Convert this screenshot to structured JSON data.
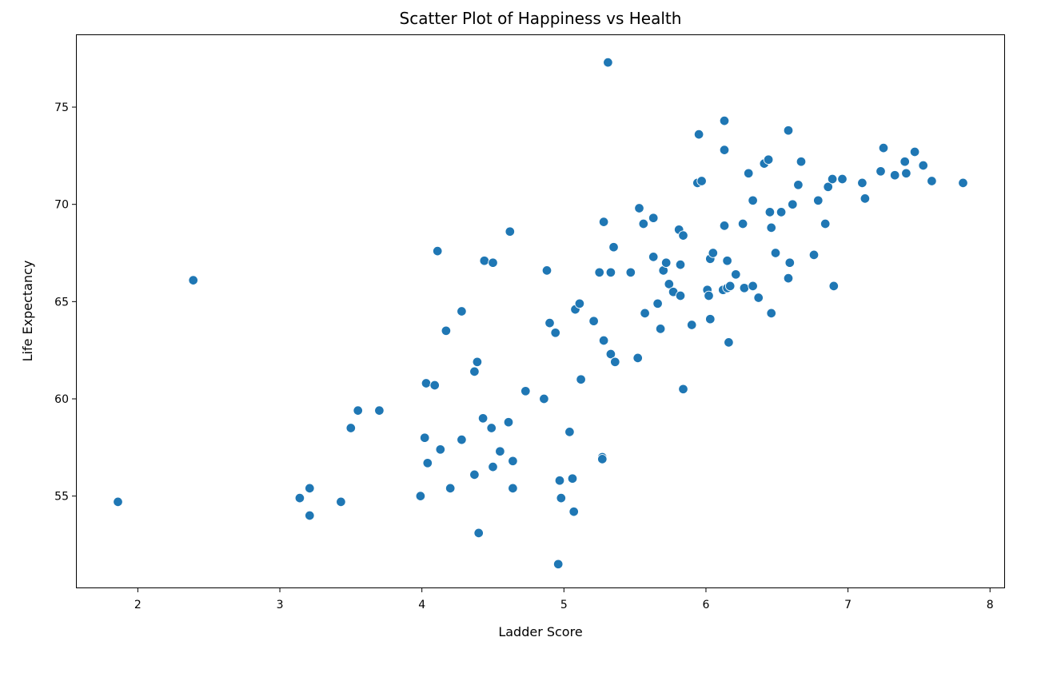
{
  "chart_data": {
    "type": "scatter",
    "title": "Scatter Plot of Happiness vs Health",
    "xlabel": "Ladder Score",
    "ylabel": "Life Expectancy",
    "xlim": [
      1.57,
      8.1
    ],
    "ylim": [
      50.3,
      78.7
    ],
    "xticks": [
      2,
      3,
      4,
      5,
      6,
      7,
      8
    ],
    "yticks": [
      55,
      60,
      65,
      70,
      75
    ],
    "grid": false,
    "legend": "none",
    "point_color": "#1f77b4",
    "points": [
      [
        1.86,
        54.7
      ],
      [
        2.39,
        66.1
      ],
      [
        3.14,
        54.9
      ],
      [
        3.21,
        55.4
      ],
      [
        3.21,
        54.0
      ],
      [
        3.43,
        54.7
      ],
      [
        3.5,
        58.5
      ],
      [
        3.55,
        59.4
      ],
      [
        3.7,
        59.4
      ],
      [
        3.99,
        55.0
      ],
      [
        4.02,
        58.0
      ],
      [
        4.03,
        60.8
      ],
      [
        4.04,
        56.7
      ],
      [
        4.09,
        60.7
      ],
      [
        4.11,
        67.6
      ],
      [
        4.13,
        57.4
      ],
      [
        4.17,
        63.5
      ],
      [
        4.2,
        55.4
      ],
      [
        4.28,
        57.9
      ],
      [
        4.28,
        64.5
      ],
      [
        4.37,
        61.4
      ],
      [
        4.37,
        56.1
      ],
      [
        4.39,
        61.9
      ],
      [
        4.4,
        53.1
      ],
      [
        4.43,
        59.0
      ],
      [
        4.44,
        67.1
      ],
      [
        4.49,
        58.5
      ],
      [
        4.5,
        67.0
      ],
      [
        4.5,
        56.5
      ],
      [
        4.55,
        57.3
      ],
      [
        4.61,
        58.8
      ],
      [
        4.62,
        68.6
      ],
      [
        4.64,
        56.8
      ],
      [
        4.64,
        55.4
      ],
      [
        4.73,
        60.4
      ],
      [
        4.86,
        60.0
      ],
      [
        4.88,
        66.6
      ],
      [
        4.9,
        63.9
      ],
      [
        4.94,
        63.4
      ],
      [
        4.96,
        51.5
      ],
      [
        4.97,
        55.8
      ],
      [
        4.98,
        54.9
      ],
      [
        5.04,
        58.3
      ],
      [
        5.06,
        55.9
      ],
      [
        5.07,
        54.2
      ],
      [
        5.08,
        64.6
      ],
      [
        5.11,
        64.9
      ],
      [
        5.12,
        61.0
      ],
      [
        5.21,
        64.0
      ],
      [
        5.25,
        66.5
      ],
      [
        5.27,
        57.0
      ],
      [
        5.27,
        56.9
      ],
      [
        5.28,
        69.1
      ],
      [
        5.28,
        63.0
      ],
      [
        5.31,
        77.3
      ],
      [
        5.33,
        62.3
      ],
      [
        5.33,
        66.5
      ],
      [
        5.35,
        67.8
      ],
      [
        5.36,
        61.9
      ],
      [
        5.47,
        66.5
      ],
      [
        5.52,
        62.1
      ],
      [
        5.53,
        69.8
      ],
      [
        5.56,
        69.0
      ],
      [
        5.57,
        64.4
      ],
      [
        5.63,
        69.3
      ],
      [
        5.63,
        67.3
      ],
      [
        5.66,
        64.9
      ],
      [
        5.68,
        63.6
      ],
      [
        5.7,
        66.6
      ],
      [
        5.72,
        67.0
      ],
      [
        5.74,
        65.9
      ],
      [
        5.77,
        65.5
      ],
      [
        5.81,
        68.7
      ],
      [
        5.82,
        66.9
      ],
      [
        5.82,
        65.3
      ],
      [
        5.84,
        68.4
      ],
      [
        5.84,
        60.5
      ],
      [
        5.9,
        63.8
      ],
      [
        5.94,
        71.1
      ],
      [
        5.95,
        73.6
      ],
      [
        5.97,
        71.2
      ],
      [
        6.01,
        65.6
      ],
      [
        6.02,
        65.3
      ],
      [
        6.03,
        67.2
      ],
      [
        6.03,
        64.1
      ],
      [
        6.05,
        67.5
      ],
      [
        6.12,
        65.6
      ],
      [
        6.13,
        68.9
      ],
      [
        6.13,
        72.8
      ],
      [
        6.13,
        74.3
      ],
      [
        6.15,
        67.1
      ],
      [
        6.15,
        65.7
      ],
      [
        6.16,
        62.9
      ],
      [
        6.17,
        65.8
      ],
      [
        6.21,
        66.4
      ],
      [
        6.26,
        69.0
      ],
      [
        6.27,
        65.7
      ],
      [
        6.3,
        71.6
      ],
      [
        6.33,
        70.2
      ],
      [
        6.33,
        65.8
      ],
      [
        6.37,
        65.2
      ],
      [
        6.41,
        72.1
      ],
      [
        6.44,
        72.3
      ],
      [
        6.45,
        69.6
      ],
      [
        6.46,
        68.8
      ],
      [
        6.46,
        64.4
      ],
      [
        6.49,
        67.5
      ],
      [
        6.53,
        69.6
      ],
      [
        6.58,
        66.2
      ],
      [
        6.58,
        73.8
      ],
      [
        6.59,
        67.0
      ],
      [
        6.61,
        70.0
      ],
      [
        6.65,
        71.0
      ],
      [
        6.67,
        72.2
      ],
      [
        6.76,
        67.4
      ],
      [
        6.79,
        70.2
      ],
      [
        6.84,
        69.0
      ],
      [
        6.86,
        70.9
      ],
      [
        6.89,
        71.3
      ],
      [
        6.9,
        65.8
      ],
      [
        6.96,
        71.3
      ],
      [
        7.1,
        71.1
      ],
      [
        7.12,
        70.3
      ],
      [
        7.23,
        71.7
      ],
      [
        7.25,
        72.9
      ],
      [
        7.33,
        71.5
      ],
      [
        7.4,
        72.2
      ],
      [
        7.41,
        71.6
      ],
      [
        7.47,
        72.7
      ],
      [
        7.53,
        72.0
      ],
      [
        7.59,
        71.2
      ],
      [
        7.81,
        71.1
      ]
    ]
  }
}
